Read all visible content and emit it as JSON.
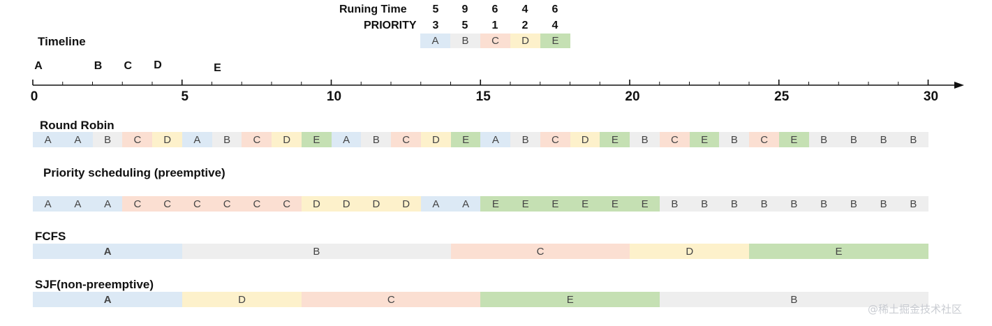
{
  "colors": {
    "A": "#dce9f5",
    "B": "#eeeeee",
    "C": "#fbdfd2",
    "D": "#fdf1cb",
    "E": "#c5e0b3"
  },
  "processes": {
    "labels": [
      "A",
      "B",
      "C",
      "D",
      "E"
    ],
    "running_time_label": "Runing Time",
    "priority_label": "PRIORITY",
    "running_time": [
      "5",
      "9",
      "6",
      "4",
      "6"
    ],
    "priority": [
      "3",
      "5",
      "1",
      "2",
      "4"
    ]
  },
  "timeline": {
    "title": "Timeline",
    "arrivals": [
      {
        "proc": "A",
        "time": 0
      },
      {
        "proc": "B",
        "time": 2
      },
      {
        "proc": "C",
        "time": 3
      },
      {
        "proc": "D",
        "time": 4
      },
      {
        "proc": "E",
        "time": 6
      }
    ],
    "tick_labels": [
      "0",
      "5",
      "10",
      "15",
      "20",
      "25",
      "30"
    ],
    "max_time": 30
  },
  "schedules": {
    "rr": {
      "title": "Round Robin",
      "slots": [
        "A",
        "A",
        "B",
        "C",
        "D",
        "A",
        "B",
        "C",
        "D",
        "E",
        "A",
        "B",
        "C",
        "D",
        "E",
        "A",
        "B",
        "C",
        "D",
        "E",
        "B",
        "C",
        "E",
        "B",
        "C",
        "E",
        "B",
        "B",
        "B",
        "B"
      ]
    },
    "ps": {
      "title": "Priority scheduling (preemptive)",
      "slots": [
        "A",
        "A",
        "A",
        "C",
        "C",
        "C",
        "C",
        "C",
        "C",
        "D",
        "D",
        "D",
        "D",
        "A",
        "A",
        "E",
        "E",
        "E",
        "E",
        "E",
        "E",
        "B",
        "B",
        "B",
        "B",
        "B",
        "B",
        "B",
        "B",
        "B"
      ]
    },
    "fcfs": {
      "title": "FCFS",
      "segments": [
        {
          "proc": "A",
          "start": 0,
          "end": 5
        },
        {
          "proc": "B",
          "start": 5,
          "end": 14
        },
        {
          "proc": "C",
          "start": 14,
          "end": 20
        },
        {
          "proc": "D",
          "start": 20,
          "end": 24
        },
        {
          "proc": "E",
          "start": 24,
          "end": 30
        }
      ]
    },
    "sjf": {
      "title": "SJF(non-preemptive)",
      "segments": [
        {
          "proc": "A",
          "start": 0,
          "end": 5
        },
        {
          "proc": "D",
          "start": 5,
          "end": 9
        },
        {
          "proc": "C",
          "start": 9,
          "end": 15
        },
        {
          "proc": "E",
          "start": 15,
          "end": 21
        },
        {
          "proc": "B",
          "start": 21,
          "end": 30
        }
      ]
    }
  },
  "watermark": "@稀土掘金技术社区"
}
